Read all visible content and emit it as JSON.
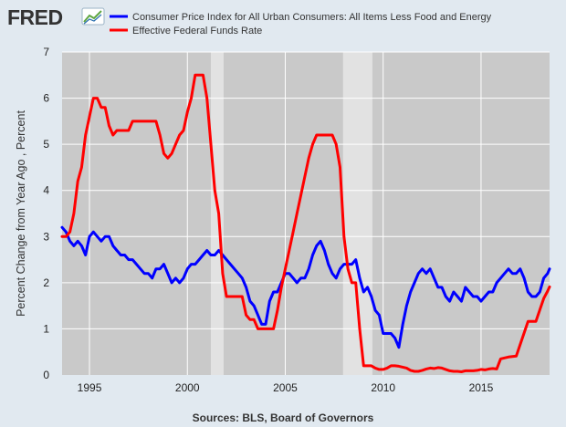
{
  "brand": {
    "name": "FRED"
  },
  "source_text": "Sources: BLS, Board of Governors",
  "colors": {
    "background": "#e1e9f0",
    "plot_background": "#c9c9c9",
    "recession": "#e2e2e2",
    "cpi": "#0000ff",
    "fedfunds": "#ff0000",
    "grid": "#ffffff"
  },
  "icon": "fred-sparkline-logo-icon",
  "chart_data": {
    "type": "line",
    "title": "",
    "xlabel": "",
    "ylabel": "Percent Change from Year Ago , Percent",
    "xlim": [
      1993.6,
      2018.5
    ],
    "ylim": [
      0,
      7
    ],
    "x_ticks": [
      1995,
      2000,
      2005,
      2010,
      2015
    ],
    "y_ticks": [
      0,
      1,
      2,
      3,
      4,
      5,
      6,
      7
    ],
    "x_tick_labels": [
      "1995",
      "2000",
      "2005",
      "2010",
      "2015"
    ],
    "y_tick_labels": [
      "0",
      "1",
      "2",
      "3",
      "4",
      "5",
      "6",
      "7"
    ],
    "grid": true,
    "legend_position": "top",
    "recessions": [
      [
        2001.2,
        2001.85
      ],
      [
        2007.95,
        2009.45
      ]
    ],
    "series": [
      {
        "name": "Consumer Price Index for All Urban Consumers: All Items Less Food and Energy",
        "color": "#0000ff",
        "x": [
          1993.6,
          1993.8,
          1994.0,
          1994.2,
          1994.4,
          1994.6,
          1994.8,
          1995.0,
          1995.2,
          1995.4,
          1995.6,
          1995.8,
          1996.0,
          1996.2,
          1996.4,
          1996.6,
          1996.8,
          1997.0,
          1997.2,
          1997.4,
          1997.6,
          1997.8,
          1998.0,
          1998.2,
          1998.4,
          1998.6,
          1998.8,
          1999.0,
          1999.2,
          1999.4,
          1999.6,
          1999.8,
          2000.0,
          2000.2,
          2000.4,
          2000.6,
          2000.8,
          2001.0,
          2001.2,
          2001.4,
          2001.6,
          2001.8,
          2002.0,
          2002.2,
          2002.4,
          2002.6,
          2002.8,
          2003.0,
          2003.2,
          2003.4,
          2003.6,
          2003.8,
          2004.0,
          2004.2,
          2004.4,
          2004.6,
          2004.8,
          2005.0,
          2005.2,
          2005.4,
          2005.6,
          2005.8,
          2006.0,
          2006.2,
          2006.4,
          2006.6,
          2006.8,
          2007.0,
          2007.2,
          2007.4,
          2007.6,
          2007.8,
          2008.0,
          2008.2,
          2008.4,
          2008.6,
          2008.8,
          2009.0,
          2009.2,
          2009.4,
          2009.6,
          2009.8,
          2010.0,
          2010.2,
          2010.4,
          2010.6,
          2010.8,
          2011.0,
          2011.2,
          2011.4,
          2011.6,
          2011.8,
          2012.0,
          2012.2,
          2012.4,
          2012.6,
          2012.8,
          2013.0,
          2013.2,
          2013.4,
          2013.6,
          2013.8,
          2014.0,
          2014.2,
          2014.4,
          2014.6,
          2014.8,
          2015.0,
          2015.2,
          2015.4,
          2015.6,
          2015.8,
          2016.0,
          2016.2,
          2016.4,
          2016.6,
          2016.8,
          2017.0,
          2017.2,
          2017.4,
          2017.6,
          2017.8,
          2018.0,
          2018.2,
          2018.4,
          2018.5
        ],
        "values": [
          3.2,
          3.1,
          2.9,
          2.8,
          2.9,
          2.8,
          2.6,
          3.0,
          3.1,
          3.0,
          2.9,
          3.0,
          3.0,
          2.8,
          2.7,
          2.6,
          2.6,
          2.5,
          2.5,
          2.4,
          2.3,
          2.2,
          2.2,
          2.1,
          2.3,
          2.3,
          2.4,
          2.2,
          2.0,
          2.1,
          2.0,
          2.1,
          2.3,
          2.4,
          2.4,
          2.5,
          2.6,
          2.7,
          2.6,
          2.6,
          2.7,
          2.6,
          2.5,
          2.4,
          2.3,
          2.2,
          2.1,
          1.9,
          1.6,
          1.5,
          1.3,
          1.1,
          1.1,
          1.6,
          1.8,
          1.8,
          2.0,
          2.2,
          2.2,
          2.1,
          2.0,
          2.1,
          2.1,
          2.3,
          2.6,
          2.8,
          2.9,
          2.7,
          2.4,
          2.2,
          2.1,
          2.3,
          2.4,
          2.4,
          2.4,
          2.5,
          2.1,
          1.8,
          1.9,
          1.7,
          1.4,
          1.3,
          0.9,
          0.9,
          0.9,
          0.8,
          0.6,
          1.1,
          1.5,
          1.8,
          2.0,
          2.2,
          2.3,
          2.2,
          2.3,
          2.1,
          1.9,
          1.9,
          1.7,
          1.6,
          1.8,
          1.7,
          1.6,
          1.9,
          1.8,
          1.7,
          1.7,
          1.6,
          1.7,
          1.8,
          1.8,
          2.0,
          2.1,
          2.2,
          2.3,
          2.2,
          2.2,
          2.3,
          2.1,
          1.8,
          1.7,
          1.7,
          1.8,
          2.1,
          2.2,
          2.3
        ]
      },
      {
        "name": "Effective Federal Funds Rate",
        "color": "#ff0000",
        "x": [
          1993.6,
          1993.8,
          1994.0,
          1994.2,
          1994.4,
          1994.6,
          1994.8,
          1995.0,
          1995.2,
          1995.4,
          1995.6,
          1995.8,
          1996.0,
          1996.2,
          1996.4,
          1996.6,
          1996.8,
          1997.0,
          1997.2,
          1997.4,
          1997.6,
          1997.8,
          1998.0,
          1998.2,
          1998.4,
          1998.6,
          1998.8,
          1999.0,
          1999.2,
          1999.4,
          1999.6,
          1999.8,
          2000.0,
          2000.2,
          2000.4,
          2000.6,
          2000.8,
          2001.0,
          2001.2,
          2001.4,
          2001.6,
          2001.8,
          2002.0,
          2002.2,
          2002.4,
          2002.6,
          2002.8,
          2003.0,
          2003.2,
          2003.4,
          2003.6,
          2003.8,
          2004.0,
          2004.2,
          2004.4,
          2004.6,
          2004.8,
          2005.0,
          2005.2,
          2005.4,
          2005.6,
          2005.8,
          2006.0,
          2006.2,
          2006.4,
          2006.6,
          2006.8,
          2007.0,
          2007.2,
          2007.4,
          2007.6,
          2007.8,
          2008.0,
          2008.2,
          2008.4,
          2008.6,
          2008.8,
          2009.0,
          2009.2,
          2009.4,
          2009.6,
          2009.8,
          2010.0,
          2010.2,
          2010.4,
          2010.6,
          2010.8,
          2011.0,
          2011.2,
          2011.4,
          2011.6,
          2011.8,
          2012.0,
          2012.2,
          2012.4,
          2012.6,
          2012.8,
          2013.0,
          2013.2,
          2013.4,
          2013.6,
          2013.8,
          2014.0,
          2014.2,
          2014.4,
          2014.6,
          2014.8,
          2015.0,
          2015.2,
          2015.4,
          2015.6,
          2015.8,
          2016.0,
          2016.2,
          2016.4,
          2016.6,
          2016.8,
          2017.0,
          2017.2,
          2017.4,
          2017.6,
          2017.8,
          2018.0,
          2018.2,
          2018.4,
          2018.5
        ],
        "values": [
          3.0,
          3.0,
          3.1,
          3.5,
          4.2,
          4.5,
          5.2,
          5.6,
          6.0,
          6.0,
          5.8,
          5.8,
          5.4,
          5.2,
          5.3,
          5.3,
          5.3,
          5.3,
          5.5,
          5.5,
          5.5,
          5.5,
          5.5,
          5.5,
          5.5,
          5.2,
          4.8,
          4.7,
          4.8,
          5.0,
          5.2,
          5.3,
          5.7,
          6.0,
          6.5,
          6.5,
          6.5,
          6.0,
          5.0,
          4.0,
          3.5,
          2.2,
          1.7,
          1.7,
          1.7,
          1.7,
          1.7,
          1.3,
          1.2,
          1.2,
          1.0,
          1.0,
          1.0,
          1.0,
          1.0,
          1.4,
          1.9,
          2.3,
          2.7,
          3.1,
          3.5,
          3.9,
          4.3,
          4.7,
          5.0,
          5.2,
          5.2,
          5.2,
          5.2,
          5.2,
          5.0,
          4.5,
          3.0,
          2.3,
          2.0,
          2.0,
          1.0,
          0.2,
          0.2,
          0.2,
          0.15,
          0.12,
          0.12,
          0.15,
          0.2,
          0.2,
          0.19,
          0.17,
          0.15,
          0.1,
          0.08,
          0.08,
          0.1,
          0.13,
          0.15,
          0.14,
          0.16,
          0.15,
          0.12,
          0.09,
          0.08,
          0.08,
          0.07,
          0.09,
          0.09,
          0.09,
          0.1,
          0.12,
          0.11,
          0.13,
          0.14,
          0.13,
          0.35,
          0.37,
          0.39,
          0.4,
          0.41,
          0.66,
          0.91,
          1.16,
          1.16,
          1.16,
          1.41,
          1.66,
          1.82,
          1.91
        ]
      }
    ]
  }
}
